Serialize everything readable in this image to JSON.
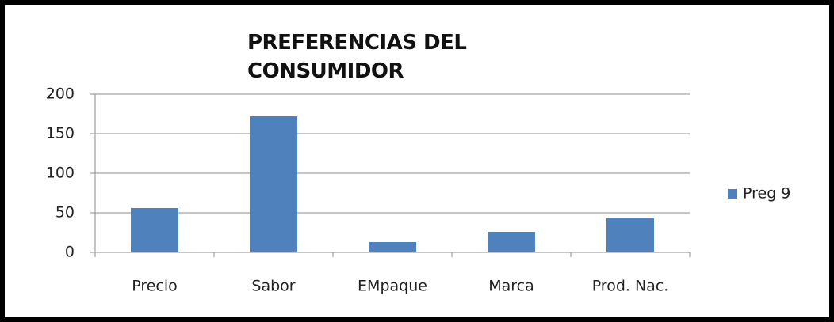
{
  "chart_data": {
    "type": "bar",
    "title": "PREFERENCIAS DEL CONSUMIDOR",
    "categories": [
      "Precio",
      "Sabor",
      "EMpaque",
      "Marca",
      "Prod. Nac."
    ],
    "series": [
      {
        "name": "Preg 9",
        "color": "#4f81bd",
        "values": [
          56,
          172,
          13,
          26,
          43
        ]
      }
    ],
    "ylim": [
      0,
      200
    ],
    "yticks": [
      0,
      50,
      100,
      150,
      200
    ],
    "grid": true,
    "legend": "right"
  }
}
